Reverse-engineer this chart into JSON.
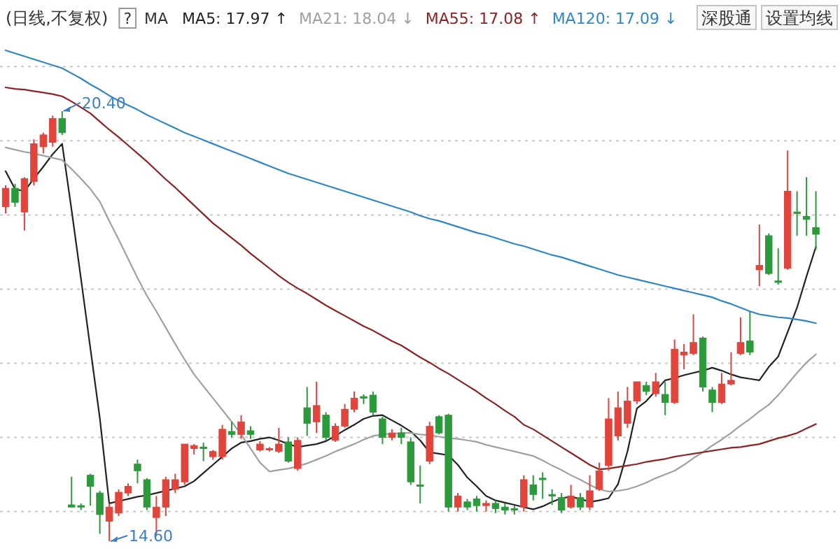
{
  "chart_data": {
    "type": "candlestick",
    "title": "(日线,不复权)",
    "categories": [
      null,
      null,
      null,
      null,
      null,
      null,
      null,
      null,
      null,
      null,
      null,
      null,
      null,
      null,
      null,
      null,
      null,
      null,
      null,
      null,
      null,
      null,
      null,
      null,
      null,
      null,
      null,
      null,
      null,
      null,
      null,
      null,
      null,
      null,
      null,
      null,
      null,
      null,
      null,
      null,
      null,
      null,
      null,
      null,
      null,
      null,
      null,
      null,
      null,
      null,
      null,
      null,
      null,
      null,
      null,
      null,
      null,
      null,
      null,
      null,
      null,
      null,
      null,
      null,
      null,
      null,
      null,
      null,
      null,
      null,
      null,
      null,
      null,
      null,
      null,
      null,
      null,
      null,
      null,
      null,
      null,
      null,
      null,
      null,
      null,
      null,
      null
    ],
    "ohlc": [
      [
        19.11,
        19.4,
        19.02,
        19.36
      ],
      [
        19.36,
        19.42,
        19.11,
        19.17
      ],
      [
        19.04,
        19.51,
        18.79,
        19.49
      ],
      [
        19.45,
        20.02,
        19.4,
        19.96
      ],
      [
        19.92,
        20.11,
        19.83,
        20.08
      ],
      [
        19.98,
        20.34,
        19.92,
        20.3
      ],
      [
        20.3,
        20.4,
        20.08,
        20.11
      ],
      [
        15.09,
        15.47,
        15.06,
        15.06
      ],
      [
        15.08,
        15.11,
        15.02,
        15.06
      ],
      [
        15.49,
        15.51,
        15.08,
        15.34
      ],
      [
        15.25,
        15.28,
        14.7,
        14.96
      ],
      [
        14.87,
        15.11,
        14.6,
        15.06
      ],
      [
        14.98,
        15.3,
        14.94,
        15.26
      ],
      [
        15.25,
        15.38,
        15.21,
        15.34
      ],
      [
        15.64,
        15.7,
        15.38,
        15.55
      ],
      [
        15.43,
        15.45,
        15.02,
        15.06
      ],
      [
        14.92,
        15.21,
        14.68,
        15.06
      ],
      [
        15.06,
        15.47,
        14.94,
        15.43
      ],
      [
        15.3,
        15.51,
        15.25,
        15.43
      ],
      [
        15.4,
        15.91,
        15.36,
        15.91
      ],
      [
        15.85,
        15.91,
        15.77,
        15.89
      ],
      [
        15.87,
        15.93,
        15.68,
        15.85
      ],
      [
        15.74,
        15.83,
        15.7,
        15.81
      ],
      [
        15.74,
        16.17,
        15.7,
        16.11
      ],
      [
        16.08,
        16.21,
        16.0,
        16.04
      ],
      [
        16.04,
        16.3,
        15.98,
        16.21
      ],
      [
        16.09,
        16.15,
        15.98,
        16.04
      ],
      [
        15.83,
        15.95,
        15.81,
        15.91
      ],
      [
        15.83,
        15.87,
        15.81,
        15.85
      ],
      [
        15.81,
        16.13,
        15.79,
        15.91
      ],
      [
        15.94,
        16.0,
        15.66,
        15.68
      ],
      [
        15.58,
        16.0,
        15.55,
        15.96
      ],
      [
        16.4,
        16.68,
        16.02,
        16.19
      ],
      [
        16.21,
        16.75,
        16.06,
        16.43
      ],
      [
        16.3,
        16.34,
        15.96,
        16.0
      ],
      [
        15.96,
        16.19,
        15.94,
        16.15
      ],
      [
        16.15,
        16.45,
        16.13,
        16.38
      ],
      [
        16.38,
        16.62,
        16.34,
        16.53
      ],
      [
        16.55,
        16.58,
        16.45,
        16.53
      ],
      [
        16.57,
        16.62,
        16.3,
        16.34
      ],
      [
        16.25,
        16.28,
        15.91,
        16.0
      ],
      [
        16.0,
        16.11,
        15.96,
        16.06
      ],
      [
        16.06,
        16.13,
        15.91,
        16.0
      ],
      [
        15.94,
        16.0,
        15.36,
        15.4
      ],
      [
        15.36,
        15.62,
        15.11,
        15.34
      ],
      [
        15.68,
        16.21,
        15.64,
        16.15
      ],
      [
        16.28,
        16.3,
        16.04,
        16.06
      ],
      [
        16.3,
        16.32,
        15.0,
        15.06
      ],
      [
        15.06,
        15.25,
        15.0,
        15.21
      ],
      [
        15.13,
        15.17,
        15.02,
        15.06
      ],
      [
        15.17,
        15.21,
        15.0,
        15.08
      ],
      [
        15.08,
        15.15,
        15.0,
        15.11
      ],
      [
        15.11,
        15.15,
        14.98,
        15.04
      ],
      [
        15.06,
        15.11,
        14.96,
        15.02
      ],
      [
        15.04,
        15.08,
        14.96,
        15.02
      ],
      [
        15.06,
        15.49,
        15.0,
        15.43
      ],
      [
        15.36,
        15.49,
        15.15,
        15.23
      ],
      [
        15.45,
        15.53,
        15.17,
        15.43
      ],
      [
        15.23,
        15.3,
        15.09,
        15.21
      ],
      [
        15.19,
        15.25,
        14.98,
        15.02
      ],
      [
        15.06,
        15.36,
        15.04,
        15.21
      ],
      [
        15.19,
        15.25,
        15.02,
        15.06
      ],
      [
        15.06,
        15.49,
        15.02,
        15.28
      ],
      [
        15.3,
        15.66,
        15.28,
        15.55
      ],
      [
        15.62,
        16.53,
        15.55,
        16.25
      ],
      [
        16.02,
        16.62,
        15.96,
        16.4
      ],
      [
        16.19,
        16.68,
        16.13,
        16.49
      ],
      [
        16.49,
        16.75,
        16.45,
        16.75
      ],
      [
        16.7,
        16.75,
        16.57,
        16.62
      ],
      [
        16.59,
        16.87,
        16.55,
        16.75
      ],
      [
        16.58,
        16.75,
        16.3,
        16.47
      ],
      [
        16.47,
        17.32,
        16.45,
        17.19
      ],
      [
        17.11,
        17.26,
        16.92,
        17.15
      ],
      [
        17.13,
        17.66,
        17.11,
        17.28
      ],
      [
        17.34,
        17.36,
        16.62,
        16.68
      ],
      [
        16.64,
        16.68,
        16.34,
        16.47
      ],
      [
        16.47,
        16.87,
        16.45,
        16.72
      ],
      [
        16.72,
        17.15,
        16.7,
        16.77
      ],
      [
        17.13,
        17.62,
        17.11,
        17.28
      ],
      [
        17.3,
        17.7,
        17.11,
        17.15
      ],
      [
        18.26,
        18.87,
        18.04,
        18.32
      ],
      [
        18.72,
        18.75,
        18.19,
        18.21
      ],
      [
        18.11,
        18.55,
        18.06,
        18.09
      ],
      [
        18.28,
        19.87,
        18.26,
        19.32
      ],
      [
        19.04,
        19.32,
        18.72,
        19.02
      ],
      [
        18.98,
        19.51,
        18.72,
        18.94
      ],
      [
        18.83,
        19.32,
        18.53,
        18.74
      ]
    ],
    "colors": [
      "#e0443a",
      "#2a9a3a",
      "#e0443a",
      "#e0443a",
      "#e0443a",
      "#e0443a",
      "#2a9a3a",
      "#2a9a3a",
      "#2a9a3a",
      "#2a9a3a",
      "#2a9a3a",
      "#e0443a",
      "#e0443a",
      "#e0443a",
      "#2a9a3a",
      "#2a9a3a",
      "#e0443a",
      "#e0443a",
      "#e0443a",
      "#e0443a",
      "#e0443a",
      "#2a9a3a",
      "#e0443a",
      "#e0443a",
      "#2a9a3a",
      "#e0443a",
      "#2a9a3a",
      "#e0443a",
      "#e0443a",
      "#e0443a",
      "#2a9a3a",
      "#e0443a",
      "#2a9a3a",
      "#e0443a",
      "#2a9a3a",
      "#e0443a",
      "#e0443a",
      "#e0443a",
      "#2a9a3a",
      "#2a9a3a",
      "#2a9a3a",
      "#e0443a",
      "#2a9a3a",
      "#2a9a3a",
      "#2a9a3a",
      "#e0443a",
      "#2a9a3a",
      "#2a9a3a",
      "#e0443a",
      "#2a9a3a",
      "#2a9a3a",
      "#e0443a",
      "#2a9a3a",
      "#2a9a3a",
      "#2a9a3a",
      "#e0443a",
      "#2a9a3a",
      "#2a9a3a",
      "#2a9a3a",
      "#2a9a3a",
      "#e0443a",
      "#2a9a3a",
      "#e0443a",
      "#e0443a",
      "#e0443a",
      "#e0443a",
      "#e0443a",
      "#e0443a",
      "#2a9a3a",
      "#e0443a",
      "#2a9a3a",
      "#e0443a",
      "#e0443a",
      "#e0443a",
      "#2a9a3a",
      "#2a9a3a",
      "#e0443a",
      "#e0443a",
      "#e0443a",
      "#2a9a3a",
      "#e0443a",
      "#2a9a3a",
      "#2a9a3a",
      "#e0443a",
      "#2a9a3a",
      "#2a9a3a",
      "#2a9a3a"
    ],
    "series": [
      {
        "name": "MA5: 17.97 ↑",
        "type": "line",
        "color": "#222222",
        "values": [
          19.59,
          19.35,
          19.32,
          19.49,
          19.65,
          19.82,
          19.96,
          19.07,
          18.14,
          17.2,
          16.26,
          15.11,
          15.14,
          15.17,
          15.2,
          15.22,
          15.25,
          15.28,
          15.31,
          15.34,
          15.41,
          15.52,
          15.63,
          15.74,
          15.85,
          15.93,
          15.95,
          15.98,
          16.0,
          15.96,
          15.91,
          15.87,
          15.89,
          15.91,
          15.95,
          16.02,
          16.1,
          16.17,
          16.25,
          16.29,
          16.3,
          16.23,
          16.16,
          16.08,
          15.96,
          15.8,
          15.78,
          15.76,
          15.63,
          15.46,
          15.34,
          15.21,
          15.15,
          15.12,
          15.09,
          15.06,
          15.03,
          15.07,
          15.13,
          15.18,
          15.2,
          15.17,
          15.13,
          15.15,
          15.18,
          15.37,
          15.81,
          16.39,
          16.49,
          16.63,
          16.77,
          16.8,
          16.84,
          16.87,
          16.9,
          16.94,
          16.9,
          16.85,
          16.81,
          16.79,
          16.77,
          16.95,
          17.09,
          17.42,
          17.75,
          18.17,
          18.57
        ]
      },
      {
        "name": "MA21: 18.04 ↓",
        "type": "line",
        "color": "#a0a0a0",
        "values": [
          19.91,
          19.88,
          19.85,
          19.83,
          19.8,
          19.77,
          19.74,
          19.62,
          19.49,
          19.35,
          19.18,
          18.92,
          18.67,
          18.41,
          18.15,
          17.91,
          17.7,
          17.48,
          17.26,
          17.05,
          16.85,
          16.69,
          16.53,
          16.37,
          16.21,
          16.04,
          15.85,
          15.66,
          15.54,
          15.56,
          15.58,
          15.61,
          15.65,
          15.7,
          15.75,
          15.81,
          15.86,
          15.91,
          15.97,
          16.02,
          16.04,
          16.05,
          16.06,
          16.06,
          16.04,
          16.03,
          16.01,
          15.99,
          15.98,
          15.96,
          15.94,
          15.9,
          15.87,
          15.84,
          15.81,
          15.78,
          15.75,
          15.69,
          15.62,
          15.56,
          15.49,
          15.43,
          15.36,
          15.3,
          15.27,
          15.28,
          15.3,
          15.34,
          15.39,
          15.45,
          15.5,
          15.55,
          15.63,
          15.72,
          15.8,
          15.89,
          15.97,
          16.06,
          16.16,
          16.25,
          16.35,
          16.44,
          16.57,
          16.72,
          16.87,
          17.01,
          17.12
        ]
      },
      {
        "name": "MA55: 17.08 ↑",
        "type": "line",
        "color": "#8b2323",
        "values": [
          20.72,
          20.7,
          20.69,
          20.67,
          20.65,
          20.63,
          20.6,
          20.53,
          20.45,
          20.37,
          20.26,
          20.15,
          20.05,
          19.94,
          19.83,
          19.72,
          19.6,
          19.48,
          19.37,
          19.25,
          19.13,
          19.01,
          18.89,
          18.79,
          18.69,
          18.59,
          18.48,
          18.38,
          18.28,
          18.18,
          18.09,
          18.01,
          17.94,
          17.86,
          17.78,
          17.71,
          17.64,
          17.57,
          17.5,
          17.44,
          17.37,
          17.3,
          17.24,
          17.16,
          17.08,
          17.01,
          16.93,
          16.86,
          16.78,
          16.7,
          16.62,
          16.53,
          16.45,
          16.36,
          16.28,
          16.17,
          16.11,
          16.03,
          15.95,
          15.87,
          15.79,
          15.71,
          15.63,
          15.57,
          15.58,
          15.6,
          15.62,
          15.64,
          15.67,
          15.69,
          15.71,
          15.74,
          15.76,
          15.78,
          15.8,
          15.82,
          15.84,
          15.86,
          15.87,
          15.89,
          15.91,
          15.95,
          15.99,
          16.02,
          16.06,
          16.12,
          16.18
        ]
      },
      {
        "name": "MA120: 17.09 ↓",
        "type": "line",
        "color": "#2f86c6",
        "values": [
          21.22,
          21.18,
          21.14,
          21.1,
          21.06,
          21.02,
          20.98,
          20.91,
          20.84,
          20.76,
          20.69,
          20.61,
          20.54,
          20.48,
          20.42,
          20.35,
          20.29,
          20.23,
          20.17,
          20.11,
          20.06,
          20.01,
          19.96,
          19.91,
          19.86,
          19.81,
          19.76,
          19.71,
          19.66,
          19.61,
          19.56,
          19.52,
          19.48,
          19.44,
          19.4,
          19.36,
          19.32,
          19.28,
          19.24,
          19.2,
          19.16,
          19.12,
          19.08,
          19.04,
          18.99,
          18.95,
          18.92,
          18.88,
          18.84,
          18.8,
          18.76,
          18.73,
          18.69,
          18.65,
          18.61,
          18.58,
          18.54,
          18.5,
          18.46,
          18.43,
          18.39,
          18.35,
          18.31,
          18.27,
          18.23,
          18.19,
          18.16,
          18.13,
          18.1,
          18.07,
          18.04,
          18.01,
          17.98,
          17.95,
          17.92,
          17.89,
          17.84,
          17.8,
          17.75,
          17.7,
          17.66,
          17.64,
          17.62,
          17.61,
          17.59,
          17.57,
          17.54
        ]
      }
    ],
    "yticks": [
      {
        "value": 15,
        "label": null
      },
      {
        "value": 16,
        "label": null
      },
      {
        "value": 17,
        "label": null
      },
      {
        "value": 18,
        "label": null
      },
      {
        "value": 19,
        "label": null
      },
      {
        "value": 20,
        "label": null
      },
      {
        "value": 21,
        "label": null
      }
    ],
    "grid": "y",
    "legend": "top",
    "annotations": [
      "?",
      "MA",
      "深股通",
      "设置均线",
      "20.40",
      "14.60"
    ]
  }
}
